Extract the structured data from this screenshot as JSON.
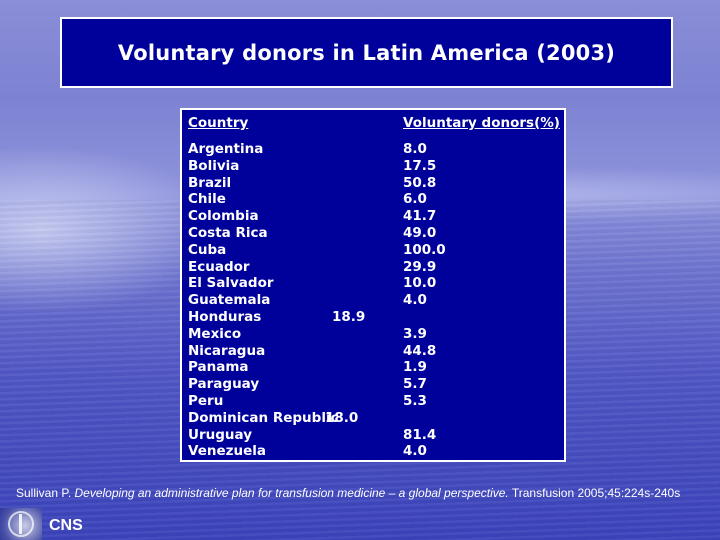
{
  "slide": {
    "title": "Voluntary donors in Latin America (2003)",
    "table": {
      "headers": {
        "country": "Country",
        "value": "Voluntary donors(%)"
      },
      "rows": [
        {
          "country": "Argentina",
          "value": "8.0",
          "inline": false
        },
        {
          "country": "Bolivia",
          "value": "17.5",
          "inline": false
        },
        {
          "country": "Brazil",
          "value": "50.8",
          "inline": false
        },
        {
          "country": "Chile",
          "value": "6.0",
          "inline": false
        },
        {
          "country": "Colombia",
          "value": "41.7",
          "inline": false
        },
        {
          "country": "Costa Rica",
          "value": "49.0",
          "inline": false
        },
        {
          "country": "Cuba",
          "value": "100.0",
          "inline": false
        },
        {
          "country": "Ecuador",
          "value": "29.9",
          "inline": false
        },
        {
          "country": "El Salvador",
          "value": "10.0",
          "inline": false
        },
        {
          "country": "Guatemala",
          "value": "4.0",
          "inline": false
        },
        {
          "country": "Honduras",
          "value": "18.9",
          "inline": true
        },
        {
          "country": "Mexico",
          "value": "3.9",
          "inline": false
        },
        {
          "country": "Nicaragua",
          "value": "44.8",
          "inline": false
        },
        {
          "country": "Panama",
          "value": "1.9",
          "inline": false
        },
        {
          "country": "Paraguay",
          "value": "5.7",
          "inline": false
        },
        {
          "country": "Peru",
          "value": "5.3",
          "inline": false
        },
        {
          "country": "Dominican Republic",
          "value": "18.0",
          "inline": true
        },
        {
          "country": "Uruguay",
          "value": "81.4",
          "inline": false
        },
        {
          "country": "Venezuela",
          "value": "4.0",
          "inline": false
        }
      ]
    },
    "citation": {
      "author": "Sullivan P.",
      "title": "Developing an administrative plan for transfusion medicine – a global perspective.",
      "source": "Transfusion 2005;45:224s-240s"
    },
    "footer": {
      "logo_icon": "caduceus-seal-icon",
      "org": "CNS"
    }
  },
  "colors": {
    "box_fill": "#00009a",
    "box_border": "#ffffff",
    "text": "#ffffff",
    "background": "#6e74cf"
  }
}
